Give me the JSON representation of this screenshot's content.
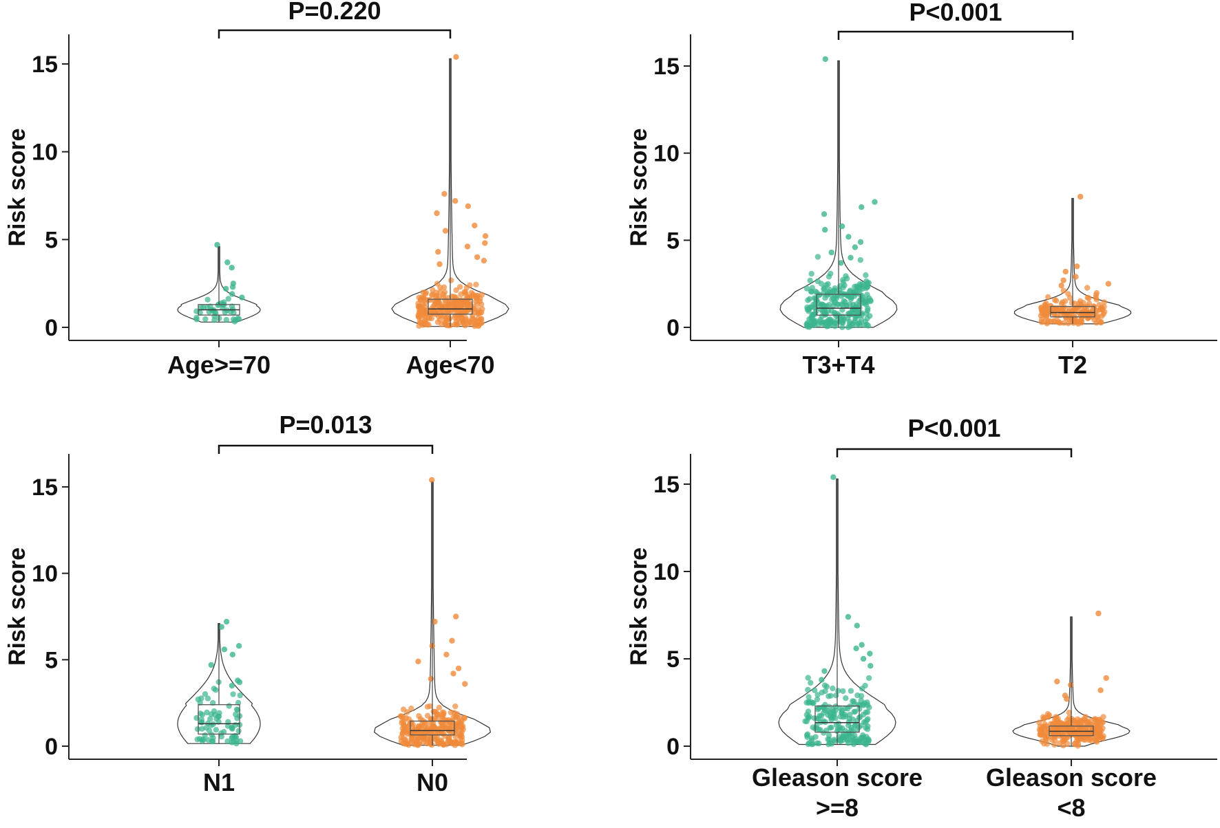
{
  "colors": {
    "group1": "#3bb58e",
    "group2": "#f08a3a",
    "line": "#222222",
    "box": "#555555"
  },
  "chart_data": [
    {
      "type": "violin-box-scatter",
      "ylabel": "Risk score",
      "yticks": [
        0,
        5,
        10,
        15
      ],
      "ylim": [
        -0.7,
        17
      ],
      "pvalue": "P=0.220",
      "groups": [
        {
          "label": "Age>=70",
          "label2": "",
          "color": "group1",
          "n": 40,
          "min": 0.3,
          "q1": 0.7,
          "median": 1.0,
          "q3": 1.3,
          "max": 4.6,
          "points": [
            4.7,
            3.7,
            3.4,
            2.5,
            2.3,
            2.2,
            1.9,
            1.7
          ]
        },
        {
          "label": "Age<70",
          "label2": "",
          "color": "group2",
          "n": 420,
          "min": 0.05,
          "q1": 0.75,
          "median": 1.05,
          "q3": 1.6,
          "max": 15.3,
          "points": [
            15.4,
            7.6,
            7.2,
            6.9,
            6.5,
            5.8,
            5.5,
            5.2,
            4.8,
            4.6,
            4.3,
            4.0,
            3.8,
            3.6
          ]
        }
      ]
    },
    {
      "type": "violin-box-scatter",
      "ylabel": "Risk score",
      "yticks": [
        0,
        5,
        10,
        15
      ],
      "ylim": [
        -0.7,
        17
      ],
      "pvalue": "P<0.001",
      "groups": [
        {
          "label": "T3+T4",
          "label2": "",
          "color": "group1",
          "n": 300,
          "min": 0.0,
          "q1": 0.7,
          "median": 1.1,
          "q3": 1.9,
          "max": 15.3,
          "points": [
            15.4,
            7.2,
            6.9,
            6.5,
            5.8,
            5.6,
            5.2,
            4.9,
            4.6,
            4.3,
            4.0,
            3.7
          ]
        },
        {
          "label": "T2",
          "label2": "",
          "color": "group2",
          "n": 170,
          "min": 0.2,
          "q1": 0.6,
          "median": 0.85,
          "q3": 1.2,
          "max": 7.4,
          "points": [
            7.5,
            3.5,
            3.2,
            2.9,
            2.7,
            2.5,
            2.4
          ]
        }
      ]
    },
    {
      "type": "violin-box-scatter",
      "ylabel": "Risk score",
      "yticks": [
        0,
        5,
        10,
        15
      ],
      "ylim": [
        -0.7,
        17
      ],
      "pvalue": "P=0.013",
      "groups": [
        {
          "label": "N1",
          "label2": "",
          "color": "group1",
          "n": 75,
          "min": 0.15,
          "q1": 0.7,
          "median": 1.3,
          "q3": 2.4,
          "max": 7.1,
          "points": [
            7.2,
            6.9,
            5.8,
            5.6,
            5.3,
            4.7,
            3.8,
            3.7,
            3.5
          ]
        },
        {
          "label": "N0",
          "label2": "",
          "color": "group2",
          "n": 300,
          "min": 0.05,
          "q1": 0.65,
          "median": 0.9,
          "q3": 1.45,
          "max": 15.3,
          "points": [
            15.4,
            7.5,
            7.2,
            6.1,
            5.8,
            5.3,
            4.9,
            4.5,
            4.2,
            3.9,
            3.6
          ]
        }
      ]
    },
    {
      "type": "violin-box-scatter",
      "ylabel": "Risk score",
      "yticks": [
        0,
        5,
        10,
        15
      ],
      "ylim": [
        -0.7,
        17
      ],
      "pvalue": "P<0.001",
      "groups": [
        {
          "label": "Gleason score",
          "label2": ">=8",
          "color": "group1",
          "n": 200,
          "min": 0.1,
          "q1": 0.8,
          "median": 1.35,
          "q3": 2.3,
          "max": 15.3,
          "points": [
            15.4,
            7.4,
            6.9,
            5.8,
            5.6,
            5.3,
            5.0,
            4.6,
            4.3,
            3.8
          ]
        },
        {
          "label": "Gleason score",
          "label2": "<8",
          "color": "group2",
          "n": 260,
          "min": 0.0,
          "q1": 0.6,
          "median": 0.85,
          "q3": 1.15,
          "max": 7.4,
          "points": [
            7.6,
            3.9,
            3.7,
            3.5,
            3.2,
            2.9,
            2.7
          ]
        }
      ]
    }
  ]
}
